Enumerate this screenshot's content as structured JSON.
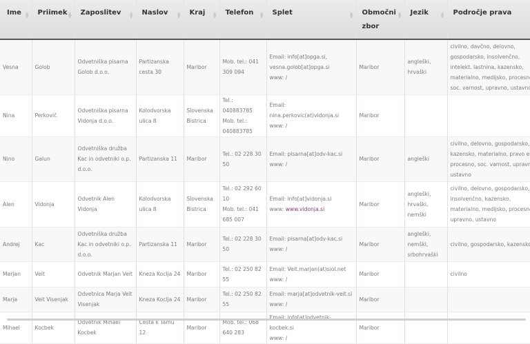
{
  "table": {
    "headers": [
      "Ime",
      "Priimek",
      "Zaposlitev",
      "Naslov",
      "Kraj",
      "Telefon",
      "Splet",
      "Območni zbor",
      "Jezik",
      "Področje prava"
    ],
    "rows": [
      {
        "ime": "Vesna",
        "priimek": "Golob",
        "zaposlitev": "Odvetniška pisarna Golob d.o.o.",
        "naslov": "Partizanska cesta 30",
        "kraj": "Maribor",
        "telefon": [
          "Mob. tel.: 041 309 094"
        ],
        "email": "Email: info[at]opga.si, vesna.golob[at]opga.si",
        "www": "www: /",
        "www_link": "",
        "zbor": "Maribor",
        "jezik": "angleški, hrvaški",
        "podrocje": "civilno, davčno, delovno, gospodarsko, insolvenčno, intelekt. lastnina, kazensko, materialno, medijsko, procesno, soc. varnost, upravno, ustavno"
      },
      {
        "ime": "Nina",
        "priimek": "Perkovič",
        "zaposlitev": "Odvetniška pisarna Vidonja d.o.o.",
        "naslov": "Kolodvorska ulica 8",
        "kraj": "Slovenska Bistrica",
        "telefon": [
          "Tel.: 040883785",
          "Mob. tel.: 040883785"
        ],
        "email": "Email: nina.perkovic(at)vidonja.si",
        "www": "www: /",
        "www_link": "",
        "zbor": "Maribor",
        "jezik": "",
        "podrocje": ""
      },
      {
        "ime": "Nino",
        "priimek": "Galun",
        "zaposlitev": "Odvetniška družba Kac in odvetniki o.p. d.o.o.",
        "naslov": "Partizanska 11",
        "kraj": "Maribor",
        "telefon": [
          "Tel.: 02 228 30 50"
        ],
        "email": "Email: pisarna[at]odv-kac.si",
        "www": "www: /",
        "www_link": "",
        "zbor": "Maribor",
        "jezik": "angleški",
        "podrocje": "civilno, delovno, gospodarsko, kazensko, materialno, pravo eu, procesno, soc. varnost, upravno, ustavno"
      },
      {
        "ime": "Alen",
        "priimek": "Vidonja",
        "zaposlitev": "Odvetnik Alen Vidonja",
        "naslov": "Kolodvorska ulica 8",
        "kraj": "Slovenska Bistrica",
        "telefon": [
          "Tel.: 02 292 60 10",
          "Mob. tel.: 041 685 007"
        ],
        "email": "Email: info[at]vidonja.si",
        "www": "www: ",
        "www_link": "www.vidonja.si",
        "zbor": "Maribor",
        "jezik": "angleški, hrvaški, nemški",
        "podrocje": "civilno, delovno, gospodarsko, insolvenčno, kazensko, materialno, medijsko, procesno, upravno, ustavno"
      },
      {
        "ime": "Andrej",
        "priimek": "Kac",
        "zaposlitev": "Odvetniška družba Kac in odvetniki o.p. d.o.o.",
        "naslov": "Partizanska 11",
        "kraj": "Maribor",
        "telefon": [
          "Tel.: 02 228 30 50"
        ],
        "email": "Email: pisarna[at]odv-kac.si",
        "www": "www: /",
        "www_link": "",
        "zbor": "Maribor",
        "jezik": "angleški, nemški, srbohrvaški",
        "podrocje": "civilno, gospodarsko, kazensko"
      },
      {
        "ime": "Marjan",
        "priimek": "Veit",
        "zaposlitev": "Odvetnik Marjan Veit",
        "naslov": "Kneza Koclja 24",
        "kraj": "Maribor",
        "telefon": [
          "Tel.: 02 250 82 55"
        ],
        "email": "Email: Veit.marjan(at)siol.net",
        "www": "www: /",
        "www_link": "",
        "zbor": "Maribor",
        "jezik": "",
        "podrocje": "civilno"
      },
      {
        "ime": "Marja",
        "priimek": "Veit Visenjak",
        "zaposlitev": "Odvetnica Marja Veit Visenjak",
        "naslov": "Kneza Koclja 24",
        "kraj": "Maribor",
        "telefon": [
          "Tel.: 02 250 82 55"
        ],
        "email": "Email: marja[at]odvetnik-veit.si",
        "www": "www: /",
        "www_link": "",
        "zbor": "Maribor",
        "jezik": "",
        "podrocje": ""
      },
      {
        "ime": "Mihael",
        "priimek": "Kocbek",
        "zaposlitev": "Odvetnik Mihael Kocbek",
        "naslov": "Cesta k Tamu 12",
        "kraj": "Maribor",
        "telefon": [
          "Mob. tel.: 068 640 283"
        ],
        "email": "Email: info[at]odvetnik-kocbek.si",
        "www": "www: /",
        "www_link": "",
        "zbor": "Maribor",
        "jezik": "",
        "podrocje": ""
      }
    ]
  },
  "colors": {
    "header_bg": "#e4e4e4",
    "text": "#7a7a7a",
    "link": "#8a3a6a",
    "header_text": "#333333"
  }
}
